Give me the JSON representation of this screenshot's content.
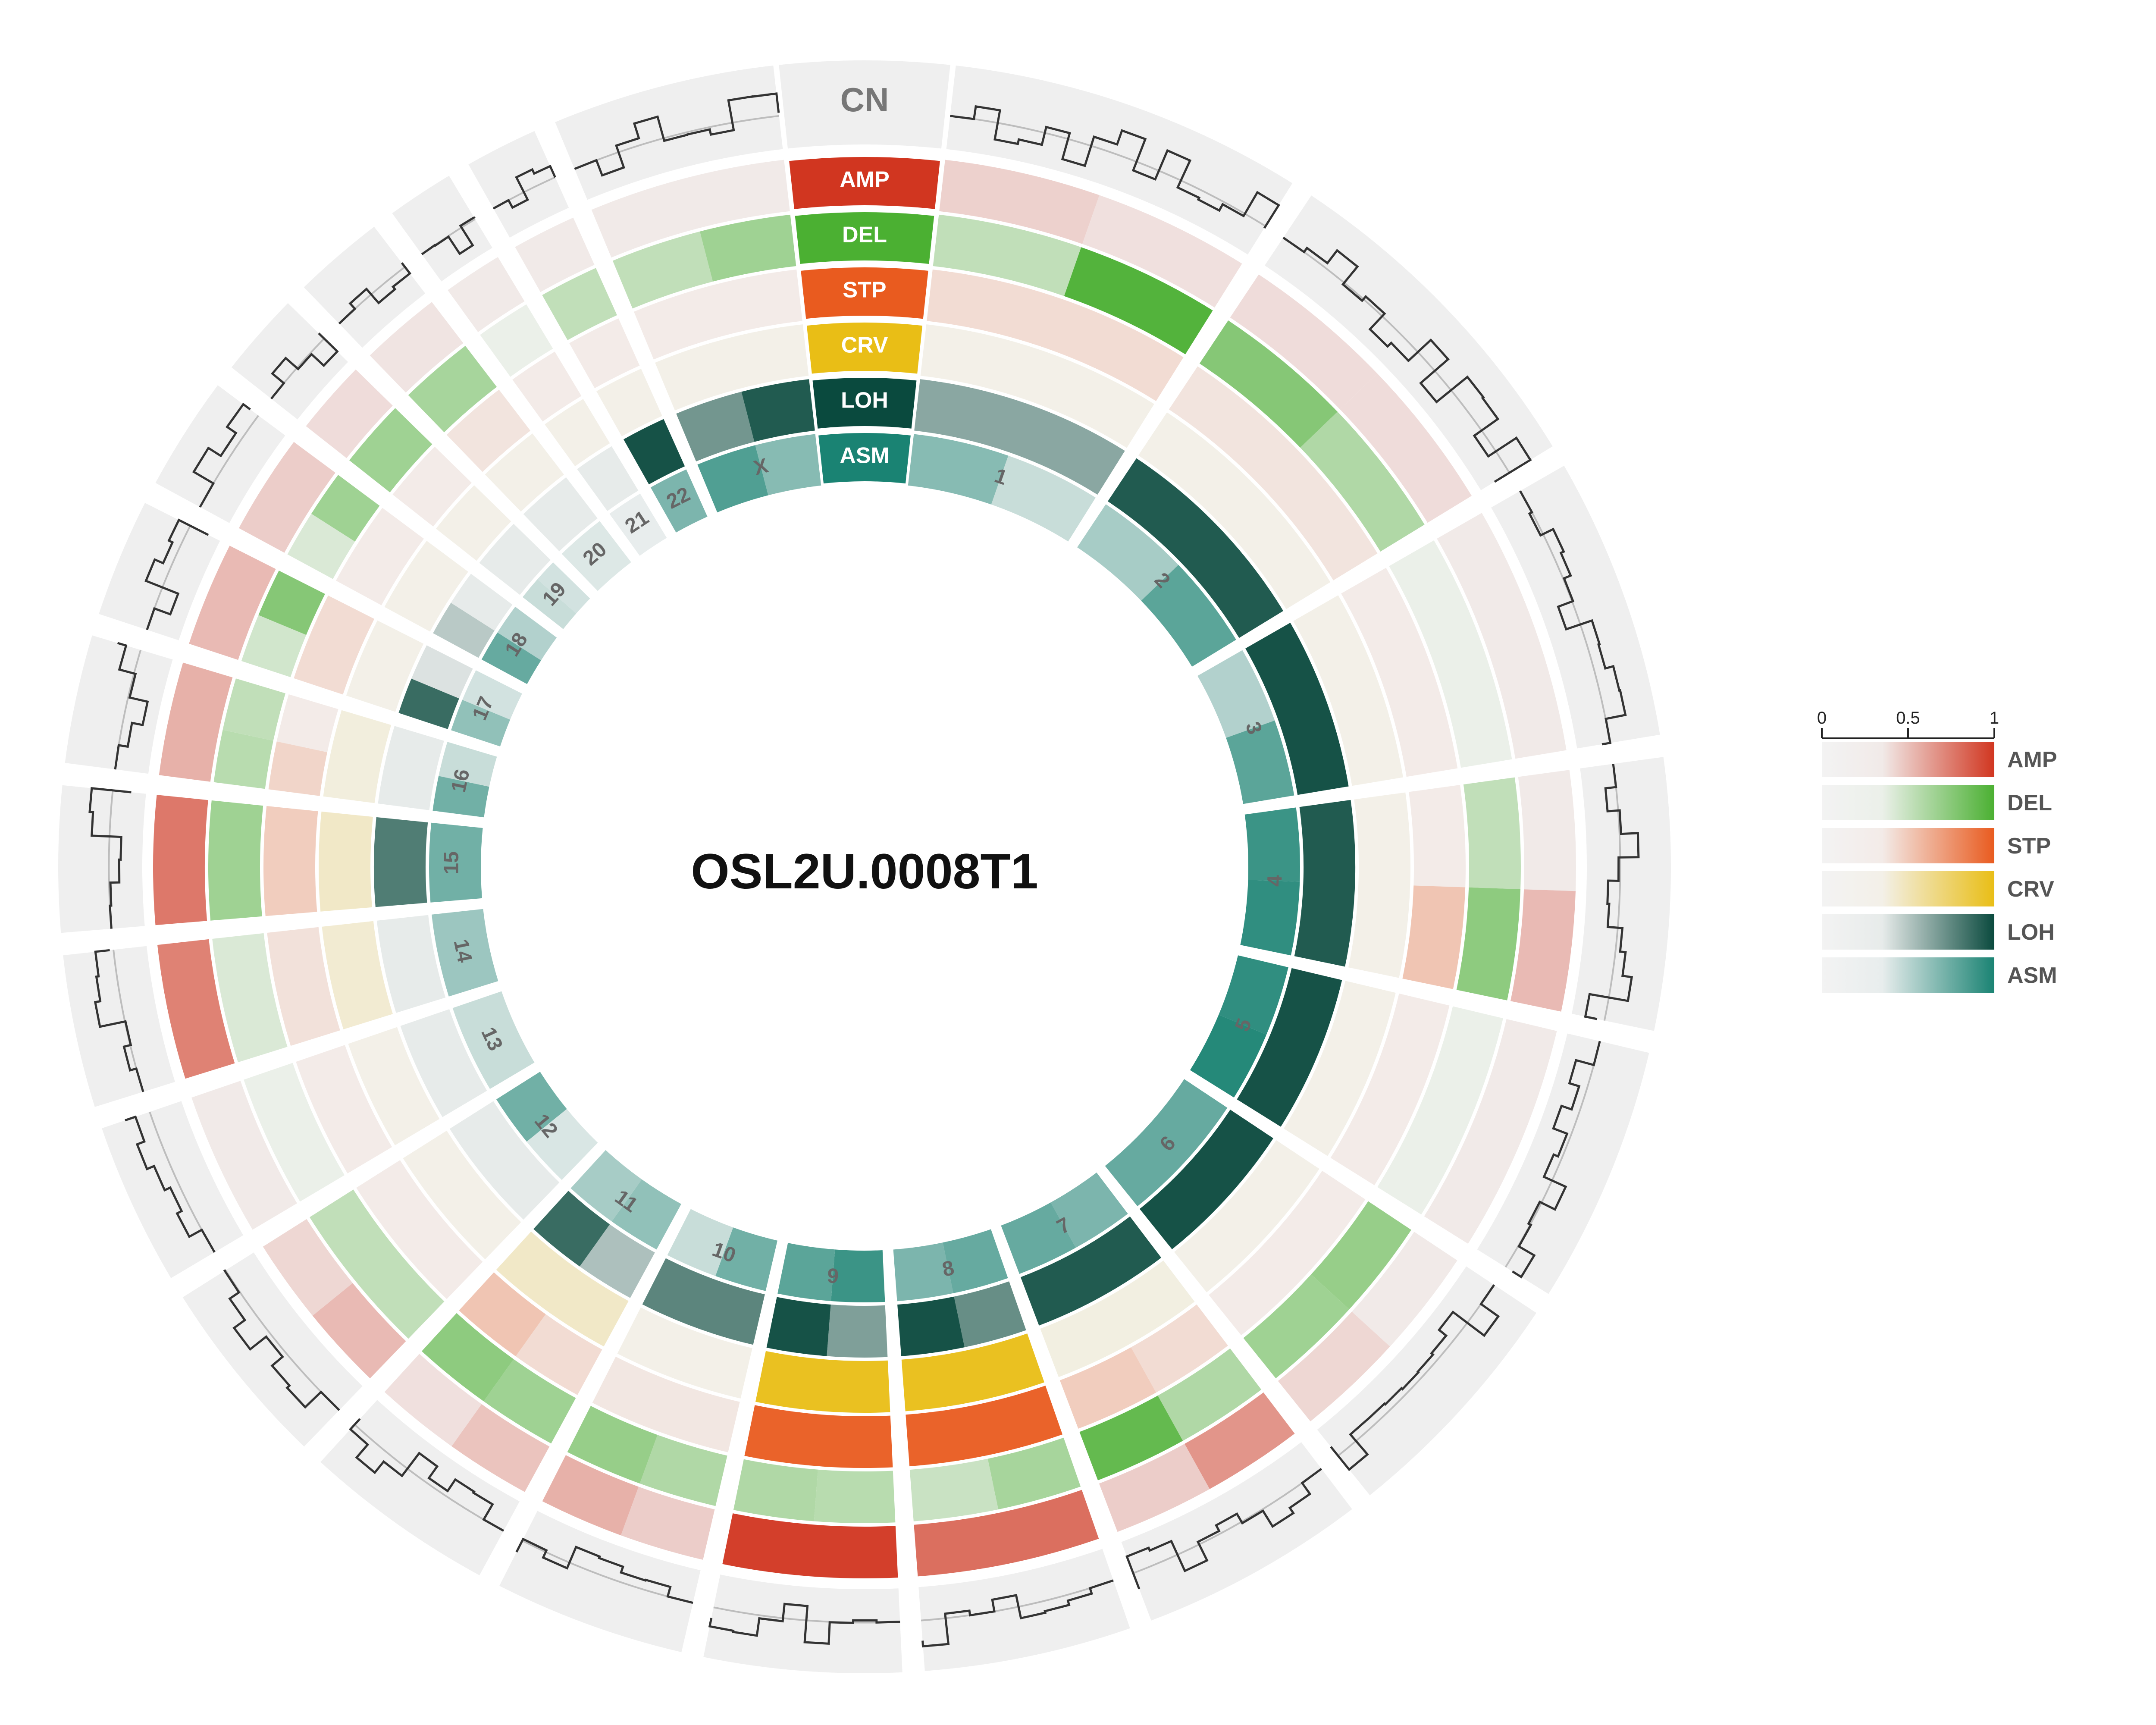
{
  "chart_data": {
    "type": "circos",
    "title": "OSL2U.0008T1",
    "chromosomes": [
      "1",
      "2",
      "3",
      "4",
      "5",
      "6",
      "7",
      "8",
      "9",
      "10",
      "11",
      "12",
      "13",
      "14",
      "15",
      "16",
      "17",
      "18",
      "19",
      "20",
      "21",
      "22",
      "X"
    ],
    "cn_track_label": "CN",
    "tracks": [
      {
        "name": "AMP",
        "color": "#D13620",
        "values": [
          [
            0.18,
            0.1
          ],
          [
            0.12,
            0.12
          ],
          [
            0.05
          ],
          [
            0.05,
            0.3
          ],
          [
            0.05
          ],
          [
            0.05,
            0.15
          ],
          [
            0.5,
            0.2
          ],
          [
            0.7
          ],
          [
            0.95
          ],
          [
            0.2,
            0.35
          ],
          [
            0.25,
            0.1
          ],
          [
            0.3,
            0.15
          ],
          [
            0.05
          ],
          [
            0.6
          ],
          [
            0.65
          ],
          [
            0.35
          ],
          [
            0.3
          ],
          [
            0.2
          ],
          [
            0.12
          ],
          [
            0.08
          ],
          [
            0.05
          ],
          [
            0.05
          ],
          [
            0.05
          ]
        ]
      },
      {
        "name": "DEL",
        "color": "#4BB032",
        "values": [
          [
            0.3,
            0.95
          ],
          [
            0.65,
            0.4
          ],
          [
            0.05
          ],
          [
            0.3,
            0.6
          ],
          [
            0.05
          ],
          [
            0.55,
            0.5
          ],
          [
            0.4,
            0.85
          ],
          [
            0.45,
            0.25
          ],
          [
            0.35,
            0.4
          ],
          [
            0.4,
            0.55
          ],
          [
            0.5,
            0.6
          ],
          [
            0.3
          ],
          [
            0.05
          ],
          [
            0.15
          ],
          [
            0.5
          ],
          [
            0.35,
            0.3
          ],
          [
            0.2,
            0.65
          ],
          [
            0.15,
            0.5
          ],
          [
            0.5
          ],
          [
            0.45
          ],
          [
            0.05
          ],
          [
            0.3
          ],
          [
            0.3,
            0.5
          ]
        ]
      },
      {
        "name": "STP",
        "color": "#E95B1F",
        "values": [
          [
            0.15
          ],
          [
            0.1
          ],
          [
            0.05
          ],
          [
            0.05,
            0.3
          ],
          [
            0.05
          ],
          [
            0.05
          ],
          [
            0.15,
            0.25
          ],
          [
            0.95
          ],
          [
            0.95
          ],
          [
            0.08
          ],
          [
            0.15,
            0.3
          ],
          [
            0.05
          ],
          [
            0.05
          ],
          [
            0.12
          ],
          [
            0.25
          ],
          [
            0.2,
            0.05
          ],
          [
            0.15
          ],
          [
            0.05
          ],
          [
            0.05
          ],
          [
            0.1
          ],
          [
            0.05
          ],
          [
            0.05
          ],
          [
            0.05
          ]
        ]
      },
      {
        "name": "CRV",
        "color": "#E9BE16",
        "values": [
          [
            0.05
          ],
          [
            0.05
          ],
          [
            0.05
          ],
          [
            0.05
          ],
          [
            0.05
          ],
          [
            0.05
          ],
          [
            0.08
          ],
          [
            0.95
          ],
          [
            0.95
          ],
          [
            0.05
          ],
          [
            0.2
          ],
          [
            0.05
          ],
          [
            0.05
          ],
          [
            0.15
          ],
          [
            0.2
          ],
          [
            0.1
          ],
          [
            0.05
          ],
          [
            0.05
          ],
          [
            0.05
          ],
          [
            0.05
          ],
          [
            0.05
          ],
          [
            0.05
          ],
          [
            0.05
          ]
        ]
      },
      {
        "name": "LOH",
        "color": "#0A4A3E",
        "values": [
          [
            0.45
          ],
          [
            0.9
          ],
          [
            0.95
          ],
          [
            0.9
          ],
          [
            0.95
          ],
          [
            0.95
          ],
          [
            0.9
          ],
          [
            0.6,
            0.95
          ],
          [
            0.5,
            0.95
          ],
          [
            0.65
          ],
          [
            0.3,
            0.8
          ],
          [
            0.05
          ],
          [
            0.05
          ],
          [
            0.05
          ],
          [
            0.7
          ],
          [
            0.05
          ],
          [
            0.8,
            0.1
          ],
          [
            0.25,
            0.05
          ],
          [
            0.05
          ],
          [
            0.05
          ],
          [
            0.05
          ],
          [
            0.95
          ],
          [
            0.55,
            0.9
          ]
        ]
      },
      {
        "name": "ASM",
        "color": "#1A8373",
        "values": [
          [
            0.5,
            0.2
          ],
          [
            0.35,
            0.7
          ],
          [
            0.3,
            0.7
          ],
          [
            0.85,
            0.9
          ],
          [
            0.9,
            0.95
          ],
          [
            0.65
          ],
          [
            0.55,
            0.65
          ],
          [
            0.65,
            0.55
          ],
          [
            0.85,
            0.7
          ],
          [
            0.6,
            0.2
          ],
          [
            0.45,
            0.35
          ],
          [
            0.12,
            0.6
          ],
          [
            0.2
          ],
          [
            0.4
          ],
          [
            0.6
          ],
          [
            0.6,
            0.2
          ],
          [
            0.45,
            0.15
          ],
          [
            0.65,
            0.3
          ],
          [
            0.2,
            0.15
          ],
          [
            0.1
          ],
          [
            0.05
          ],
          [
            0.55
          ],
          [
            0.75,
            0.5
          ]
        ]
      }
    ],
    "legend": {
      "ticks": [
        "0",
        "0.5",
        "1"
      ],
      "entries": [
        "AMP",
        "DEL",
        "STP",
        "CRV",
        "LOH",
        "ASM"
      ],
      "placement": "right"
    },
    "cn_range": [
      0,
      1
    ]
  }
}
